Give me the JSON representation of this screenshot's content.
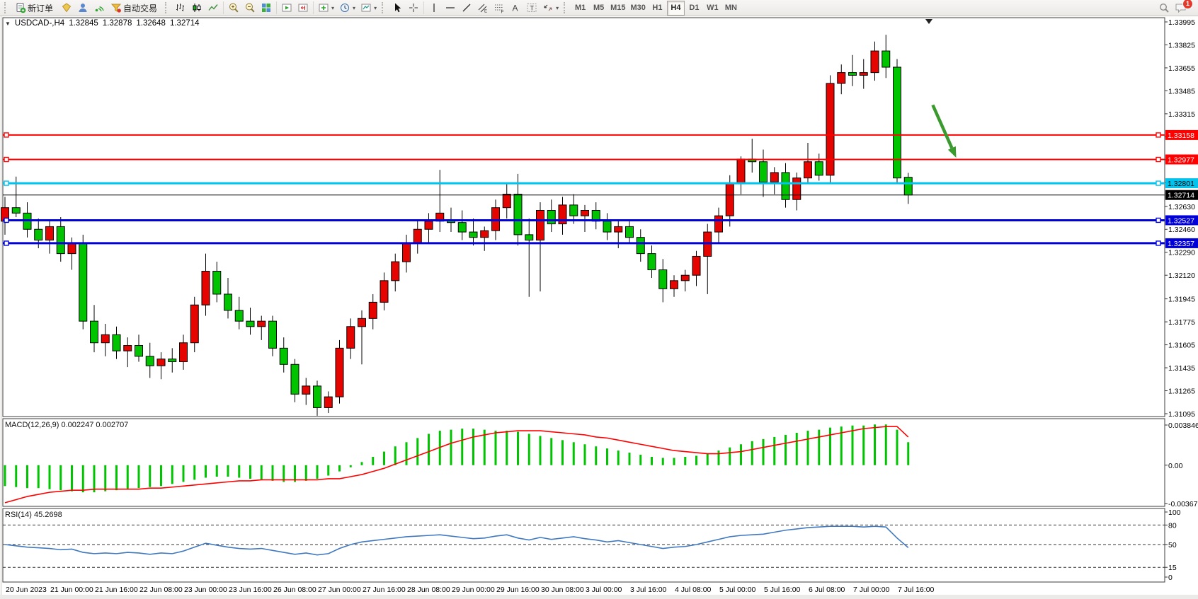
{
  "toolbar": {
    "new_order_label": "新订单",
    "autotrading_label": "自动交易",
    "timeframes": [
      "M1",
      "M5",
      "M15",
      "M30",
      "H1",
      "H4",
      "D1",
      "W1",
      "MN"
    ],
    "active_timeframe": "H4",
    "notification_count": "1"
  },
  "chart": {
    "title": {
      "symbol": "USDCAD-,H4",
      "open": "1.32845",
      "high": "1.32878",
      "low": "1.32648",
      "close": "1.32714"
    }
  },
  "chart_data": {
    "type": "candlestick",
    "symbol": "USDCAD",
    "timeframe": "H4",
    "ylim": [
      1.31095,
      1.33995
    ],
    "y_ticks": [
      "1.33995",
      "1.33825",
      "1.33655",
      "1.33485",
      "1.33315",
      "1.33145",
      "1.32975",
      "1.32805",
      "1.32630",
      "1.32460",
      "1.32290",
      "1.32120",
      "1.31945",
      "1.31775",
      "1.31605",
      "1.31435",
      "1.31265",
      "1.31095"
    ],
    "x_labels": [
      "20 Jun 2023",
      "21 Jun 00:00",
      "21 Jun 16:00",
      "22 Jun 08:00",
      "23 Jun 00:00",
      "23 Jun 16:00",
      "26 Jun 08:00",
      "27 Jun 00:00",
      "27 Jun 16:00",
      "28 Jun 08:00",
      "29 Jun 00:00",
      "29 Jun 16:00",
      "30 Jun 08:00",
      "3 Jul 00:00",
      "3 Jul 16:00",
      "4 Jul 08:00",
      "5 Jul 00:00",
      "5 Jul 16:00",
      "6 Jul 08:00",
      "7 Jul 00:00",
      "7 Jul 16:00"
    ],
    "colors": {
      "bull": "#e60400",
      "bear": "#00c400",
      "wick": "#000000",
      "line_red": "#ff0000",
      "line_cyan": "#00c3ee",
      "line_blue": "#0000d8",
      "bid": "#000000",
      "macd_hist": "#00c400",
      "macd_signal": "#ff0000",
      "rsi_line": "#4079c0",
      "arrow": "#3a9a2e"
    },
    "hlines": [
      {
        "price": 1.33158,
        "label": "1.33158",
        "color": "#ff0000",
        "width": 2,
        "text_color": "#ffffff"
      },
      {
        "price": 1.32977,
        "label": "1.32977",
        "color": "#ff0000",
        "width": 2,
        "text_color": "#ffffff"
      },
      {
        "price": 1.32801,
        "label": "1.32801",
        "color": "#00c3ee",
        "width": 3,
        "text_color": "#000000"
      },
      {
        "price": 1.32527,
        "label": "1.32527",
        "color": "#0000d8",
        "width": 3,
        "text_color": "#ffffff"
      },
      {
        "price": 1.32357,
        "label": "1.32357",
        "color": "#0000d8",
        "width": 3,
        "text_color": "#ffffff"
      }
    ],
    "bid": {
      "price": 1.32714,
      "label": "1.32714"
    },
    "ohlc": [
      [
        1.3252,
        1.327,
        1.3242,
        1.3262
      ],
      [
        1.3262,
        1.3285,
        1.3255,
        1.3258
      ],
      [
        1.3258,
        1.3266,
        1.324,
        1.3246
      ],
      [
        1.3246,
        1.3254,
        1.3232,
        1.3238
      ],
      [
        1.3238,
        1.3252,
        1.3228,
        1.3248
      ],
      [
        1.3248,
        1.3255,
        1.3222,
        1.3228
      ],
      [
        1.3228,
        1.324,
        1.3216,
        1.3236
      ],
      [
        1.3236,
        1.3242,
        1.3172,
        1.3178
      ],
      [
        1.3178,
        1.319,
        1.3155,
        1.3162
      ],
      [
        1.3162,
        1.3176,
        1.3152,
        1.3168
      ],
      [
        1.3168,
        1.3174,
        1.315,
        1.3156
      ],
      [
        1.3156,
        1.3166,
        1.3144,
        1.316
      ],
      [
        1.316,
        1.3168,
        1.3148,
        1.3152
      ],
      [
        1.3152,
        1.3162,
        1.3136,
        1.3145
      ],
      [
        1.3145,
        1.3155,
        1.3135,
        1.315
      ],
      [
        1.315,
        1.3158,
        1.314,
        1.3148
      ],
      [
        1.3148,
        1.3168,
        1.3142,
        1.3162
      ],
      [
        1.3162,
        1.3196,
        1.3155,
        1.319
      ],
      [
        1.319,
        1.3228,
        1.3182,
        1.3215
      ],
      [
        1.3215,
        1.3222,
        1.3192,
        1.3198
      ],
      [
        1.3198,
        1.321,
        1.318,
        1.3186
      ],
      [
        1.3186,
        1.3196,
        1.3172,
        1.3178
      ],
      [
        1.3178,
        1.3188,
        1.3168,
        1.3174
      ],
      [
        1.3174,
        1.3182,
        1.3164,
        1.3178
      ],
      [
        1.3178,
        1.3182,
        1.3152,
        1.3158
      ],
      [
        1.3158,
        1.3166,
        1.314,
        1.3146
      ],
      [
        1.3146,
        1.315,
        1.3118,
        1.3124
      ],
      [
        1.3124,
        1.3136,
        1.3116,
        1.313
      ],
      [
        1.313,
        1.3134,
        1.3108,
        1.3114
      ],
      [
        1.3114,
        1.3126,
        1.311,
        1.3122
      ],
      [
        1.3122,
        1.3164,
        1.3117,
        1.3158
      ],
      [
        1.3158,
        1.318,
        1.315,
        1.3174
      ],
      [
        1.3174,
        1.3186,
        1.3146,
        1.318
      ],
      [
        1.318,
        1.3198,
        1.3172,
        1.3192
      ],
      [
        1.3192,
        1.3214,
        1.3186,
        1.3208
      ],
      [
        1.3208,
        1.3228,
        1.32,
        1.3222
      ],
      [
        1.3222,
        1.3242,
        1.3214,
        1.3236
      ],
      [
        1.3236,
        1.3252,
        1.3228,
        1.3246
      ],
      [
        1.3246,
        1.3258,
        1.3236,
        1.3252
      ],
      [
        1.3252,
        1.329,
        1.3244,
        1.3258
      ],
      [
        1.3253,
        1.3262,
        1.3244,
        1.3251
      ],
      [
        1.3251,
        1.326,
        1.3238,
        1.3244
      ],
      [
        1.3244,
        1.3254,
        1.3234,
        1.324
      ],
      [
        1.324,
        1.3248,
        1.323,
        1.3245
      ],
      [
        1.3245,
        1.3268,
        1.3238,
        1.3262
      ],
      [
        1.3262,
        1.328,
        1.3254,
        1.3272
      ],
      [
        1.3272,
        1.3287,
        1.3234,
        1.3242
      ],
      [
        1.3242,
        1.3254,
        1.3196,
        1.3238
      ],
      [
        1.3238,
        1.3266,
        1.32,
        1.326
      ],
      [
        1.326,
        1.3268,
        1.3244,
        1.325
      ],
      [
        1.325,
        1.327,
        1.3242,
        1.3264
      ],
      [
        1.3264,
        1.3272,
        1.325,
        1.3256
      ],
      [
        1.3256,
        1.3264,
        1.3244,
        1.326
      ],
      [
        1.326,
        1.3266,
        1.3246,
        1.3252
      ],
      [
        1.3252,
        1.3258,
        1.3238,
        1.3244
      ],
      [
        1.3244,
        1.3252,
        1.3232,
        1.3248
      ],
      [
        1.3248,
        1.3252,
        1.3236,
        1.324
      ],
      [
        1.324,
        1.3246,
        1.3222,
        1.3228
      ],
      [
        1.3228,
        1.3234,
        1.321,
        1.3216
      ],
      [
        1.3216,
        1.3224,
        1.3192,
        1.3202
      ],
      [
        1.3202,
        1.3212,
        1.3196,
        1.3208
      ],
      [
        1.3208,
        1.3216,
        1.32,
        1.3212
      ],
      [
        1.3212,
        1.323,
        1.3204,
        1.3226
      ],
      [
        1.3226,
        1.325,
        1.3198,
        1.3244
      ],
      [
        1.3244,
        1.3262,
        1.3236,
        1.3256
      ],
      [
        1.3256,
        1.3286,
        1.3248,
        1.328
      ],
      [
        1.328,
        1.33,
        1.3272,
        1.3298
      ],
      [
        1.3298,
        1.3313,
        1.3288,
        1.3296
      ],
      [
        1.3296,
        1.3305,
        1.327,
        1.3281
      ],
      [
        1.3281,
        1.3292,
        1.3272,
        1.3288
      ],
      [
        1.3288,
        1.3295,
        1.3262,
        1.3268
      ],
      [
        1.3268,
        1.3288,
        1.326,
        1.3284
      ],
      [
        1.3284,
        1.331,
        1.328,
        1.3296
      ],
      [
        1.3296,
        1.3302,
        1.3282,
        1.3286
      ],
      [
        1.3286,
        1.336,
        1.328,
        1.3354
      ],
      [
        1.3354,
        1.3368,
        1.3346,
        1.3362
      ],
      [
        1.3362,
        1.3375,
        1.3352,
        1.336
      ],
      [
        1.336,
        1.3372,
        1.335,
        1.3362
      ],
      [
        1.3362,
        1.3385,
        1.3356,
        1.3378
      ],
      [
        1.3378,
        1.339,
        1.3358,
        1.3366
      ],
      [
        1.3366,
        1.3372,
        1.328,
        1.3284
      ],
      [
        1.32845,
        1.32878,
        1.32648,
        1.32714
      ]
    ],
    "indicators": {
      "macd": {
        "label": "MACD(12,26,9)",
        "values_text": "0.002247 0.002707",
        "y_ticks": [
          "0.003846",
          "0.00",
          "-0.003675"
        ],
        "ylim": [
          -0.003675,
          0.003846
        ],
        "unit": 0.0001,
        "histogram": [
          -20,
          -21,
          -22,
          -22,
          -23,
          -24,
          -25,
          -26,
          -26,
          -25,
          -24,
          -23,
          -22,
          -21,
          -20,
          -18,
          -16,
          -14,
          -12,
          -11,
          -11,
          -12,
          -13,
          -14,
          -15,
          -16,
          -16,
          -15,
          -13,
          -10,
          -6,
          -2,
          3,
          8,
          13,
          18,
          22,
          26,
          30,
          33,
          34,
          35,
          35,
          34,
          33,
          33,
          32,
          30,
          28,
          26,
          24,
          22,
          20,
          18,
          16,
          14,
          12,
          10,
          8,
          7,
          7,
          8,
          9,
          11,
          14,
          17,
          20,
          23,
          25,
          27,
          29,
          31,
          33,
          34,
          36,
          37,
          38,
          38,
          39,
          39,
          34,
          22
        ],
        "signal": [
          -36,
          -33,
          -30,
          -28,
          -26,
          -25,
          -24,
          -24,
          -23,
          -23,
          -23,
          -23,
          -23,
          -22,
          -22,
          -21,
          -20,
          -19,
          -18,
          -17,
          -16,
          -15,
          -15,
          -14,
          -14,
          -14,
          -14,
          -14,
          -14,
          -13,
          -13,
          -11,
          -9,
          -6,
          -3,
          1,
          5,
          9,
          13,
          17,
          21,
          24,
          27,
          29,
          31,
          32,
          33,
          33,
          33,
          32,
          31,
          30,
          29,
          27,
          26,
          24,
          22,
          20,
          18,
          16,
          14,
          13,
          12,
          11,
          11,
          12,
          13,
          15,
          17,
          19,
          21,
          23,
          25,
          27,
          29,
          31,
          33,
          35,
          36,
          37,
          37,
          27
        ]
      },
      "rsi": {
        "label": "RSI(14)",
        "value_text": "45.2698",
        "levels": [
          100,
          80,
          50,
          15,
          0
        ],
        "dashed_levels": [
          80,
          50,
          15
        ],
        "ylim": [
          0,
          100
        ],
        "series": [
          50,
          48,
          46,
          45,
          44,
          42,
          43,
          38,
          36,
          37,
          36,
          38,
          37,
          35,
          37,
          36,
          40,
          46,
          52,
          49,
          46,
          44,
          43,
          44,
          41,
          38,
          35,
          37,
          34,
          36,
          44,
          50,
          54,
          56,
          58,
          60,
          62,
          63,
          64,
          65,
          63,
          61,
          59,
          60,
          63,
          65,
          60,
          57,
          61,
          58,
          60,
          62,
          59,
          57,
          54,
          56,
          53,
          50,
          47,
          44,
          46,
          47,
          50,
          54,
          58,
          62,
          64,
          65,
          66,
          69,
          72,
          74,
          76,
          77,
          78,
          78,
          78,
          77,
          78,
          77,
          60,
          45.27
        ]
      }
    },
    "annotation": {
      "shape": "arrow",
      "color": "#3a9a2e",
      "from": {
        "bar": 83.2,
        "price": 1.3338
      },
      "to": {
        "bar": 85.3,
        "price": 1.3299
      }
    }
  }
}
